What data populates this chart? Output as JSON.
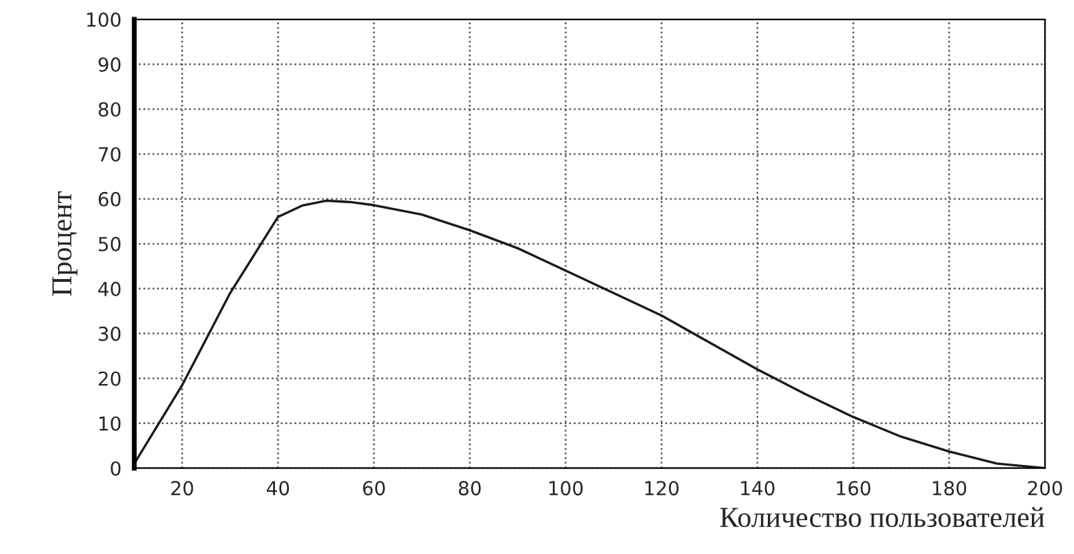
{
  "chart_data": {
    "type": "line",
    "xlabel": "Количество пользователей",
    "ylabel": "Процент",
    "x": [
      10,
      20,
      30,
      40,
      45,
      50,
      55,
      60,
      70,
      80,
      90,
      100,
      110,
      120,
      130,
      140,
      150,
      160,
      170,
      180,
      190,
      195,
      200
    ],
    "series": [
      {
        "color": "#1a1a1a",
        "values": [
          1,
          18.5,
          39,
          56,
          58.5,
          59.6,
          59.3,
          58.6,
          56.5,
          53,
          49,
          44,
          39,
          34,
          28,
          22,
          16.5,
          11.4,
          7,
          3.7,
          1,
          0.5,
          0
        ]
      }
    ],
    "xlim": [
      10,
      200
    ],
    "xticks": [
      20,
      40,
      60,
      80,
      100,
      120,
      140,
      160,
      180,
      200
    ],
    "ylim": [
      0,
      100
    ],
    "yticks": [
      0,
      10,
      20,
      30,
      40,
      50,
      60,
      70,
      80,
      90,
      100
    ],
    "grid": true,
    "marker": "none",
    "line_style": "solid"
  }
}
